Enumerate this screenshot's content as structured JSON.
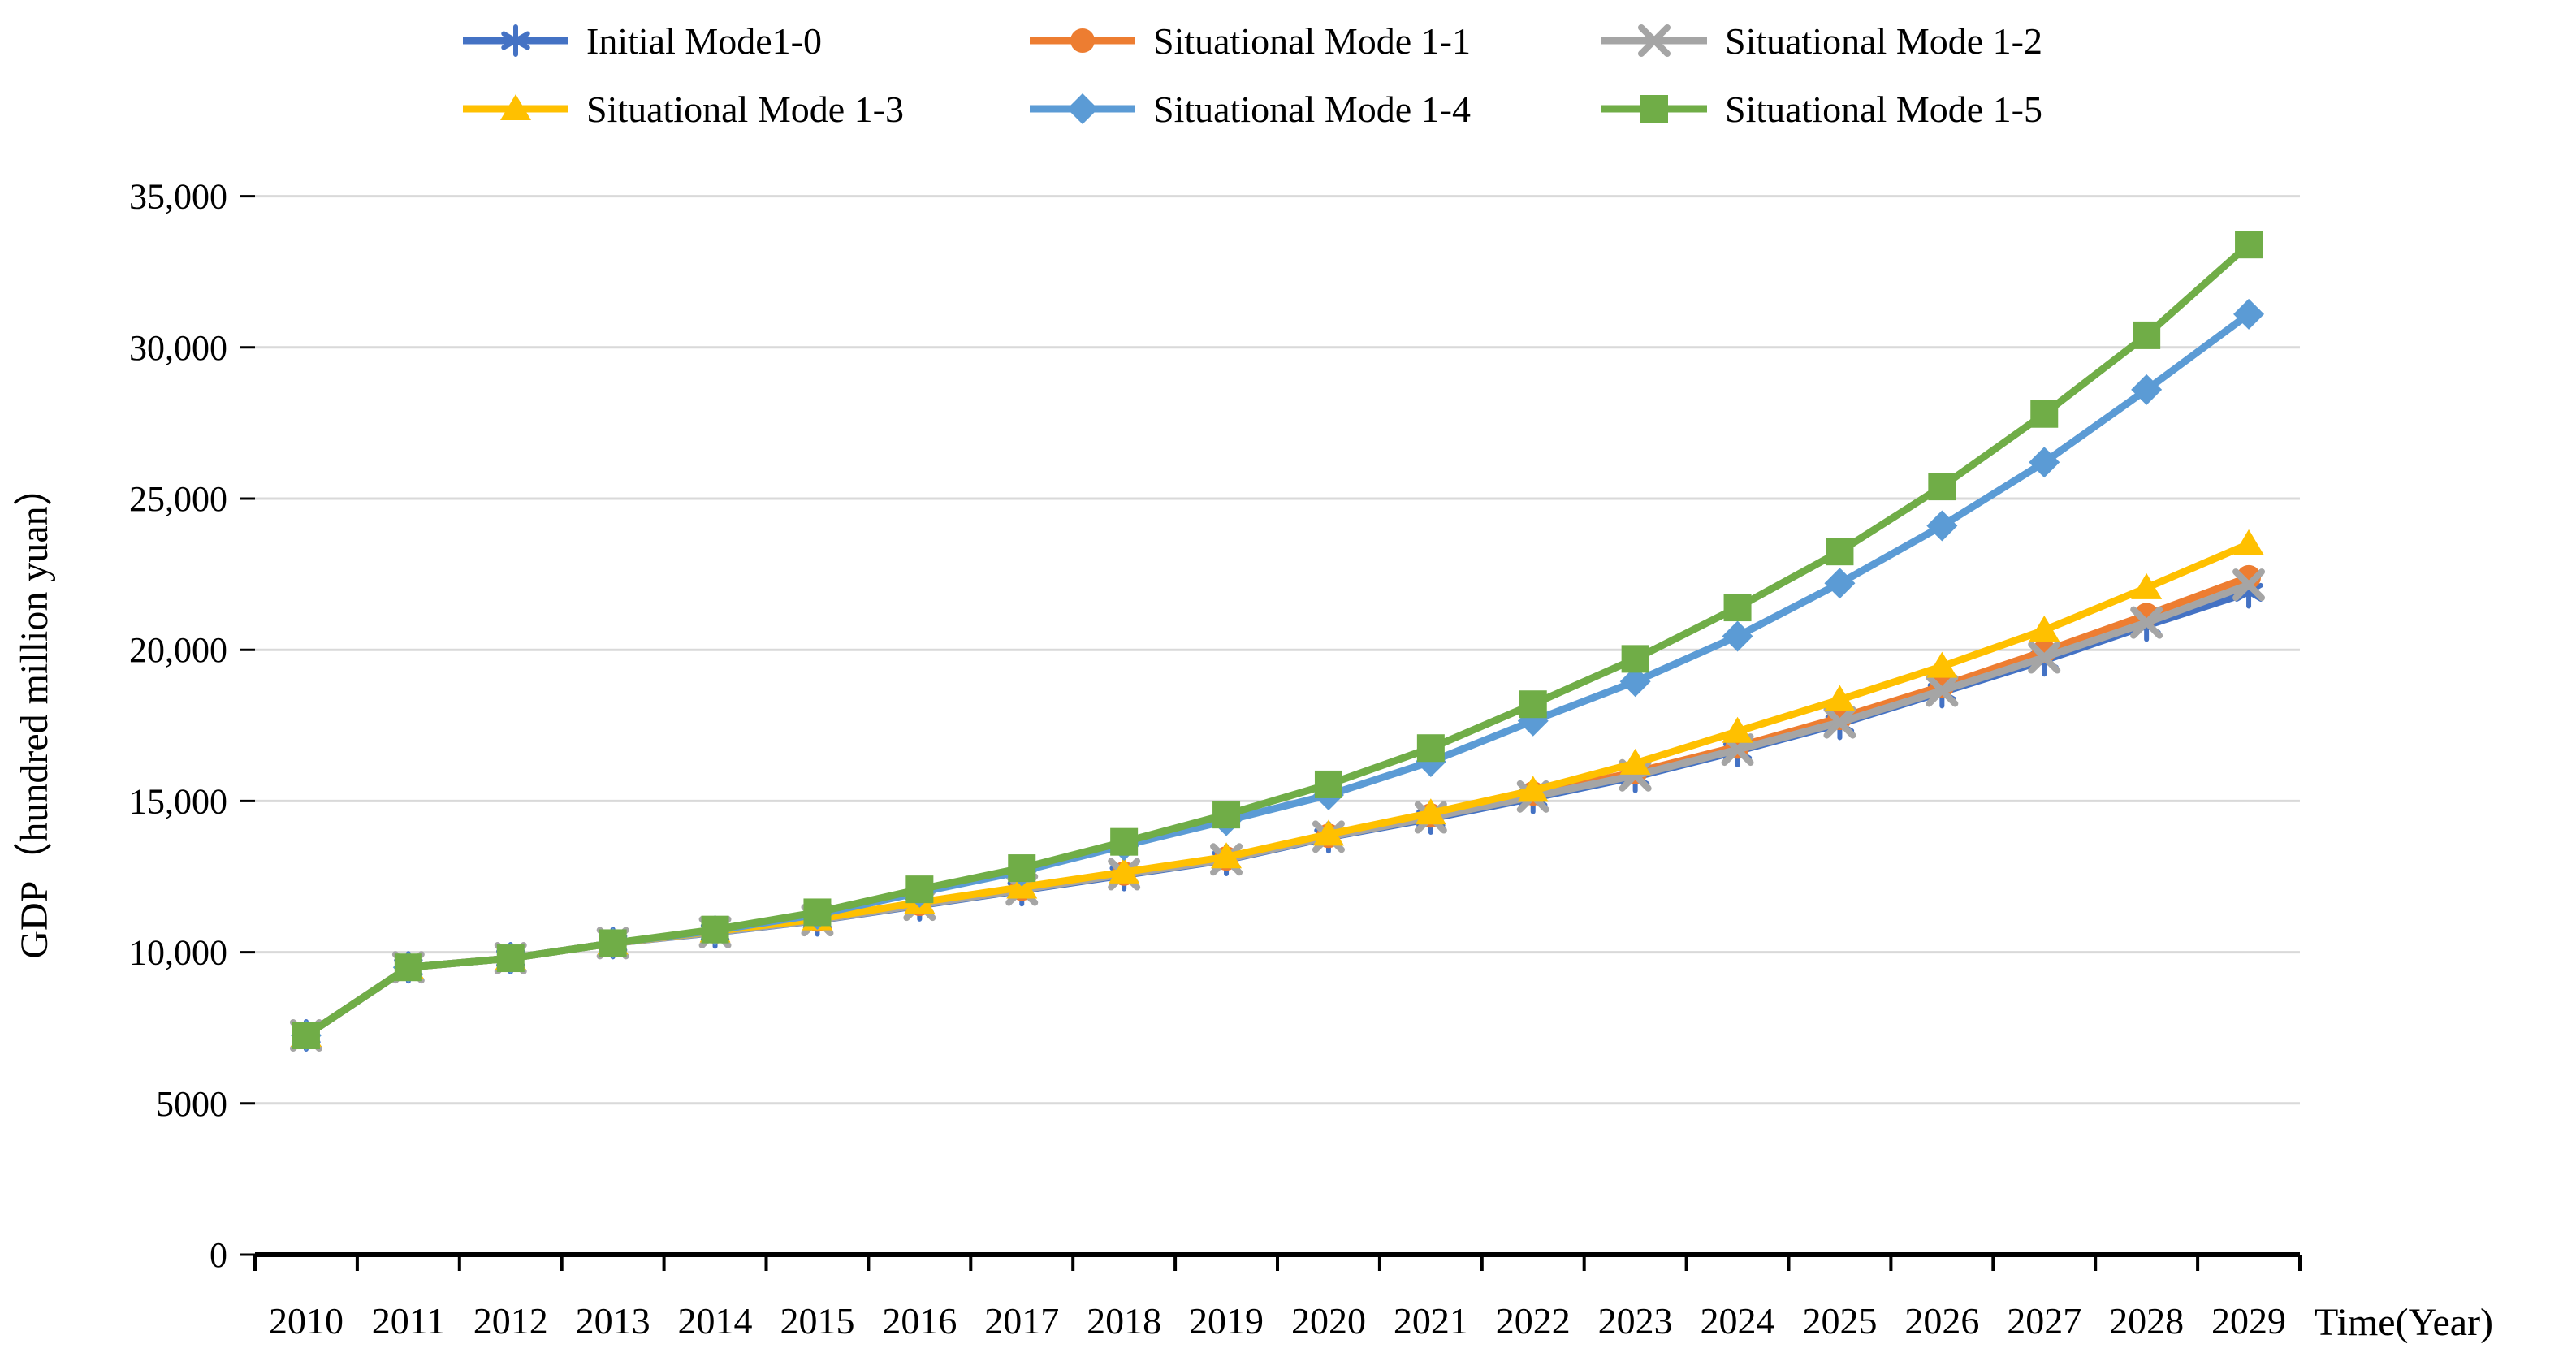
{
  "chart_data": {
    "type": "line",
    "title": "",
    "xlabel": "Time(Year)",
    "ylabel": "GDP（hundred million yuan）",
    "x": [
      2010,
      2011,
      2012,
      2013,
      2014,
      2015,
      2016,
      2017,
      2018,
      2019,
      2020,
      2021,
      2022,
      2023,
      2024,
      2025,
      2026,
      2027,
      2028,
      2029
    ],
    "x_tick_labels": [
      "2010",
      "2011",
      "2012",
      "2013",
      "2014",
      "2015",
      "2016",
      "2017",
      "2018",
      "2019",
      "2020",
      "2021",
      "2022",
      "2023",
      "2024",
      "2025",
      "2026",
      "2027",
      "2028",
      "2029"
    ],
    "y_ticks": [
      0,
      5000,
      10000,
      15000,
      20000,
      25000,
      30000,
      35000
    ],
    "y_tick_labels": [
      "0",
      "5000",
      "10,000",
      "15,000",
      "20,000",
      "25,000",
      "30,000",
      "35,000"
    ],
    "ylim": [
      0,
      35000
    ],
    "grid": "horizontal-only",
    "gridline_color": "#D9D9D9",
    "axis_color": "#000000",
    "legend_position": "top-two-rows",
    "series": [
      {
        "name": "Initial Mode1-0",
        "color": "#4472C4",
        "marker": "asterisk",
        "values": [
          7250,
          9500,
          9800,
          10300,
          10650,
          11050,
          11550,
          12050,
          12550,
          13050,
          13800,
          14420,
          15100,
          15800,
          16650,
          17550,
          18600,
          19650,
          20800,
          21900
        ]
      },
      {
        "name": "Situational Mode 1-1",
        "color": "#ED7D31",
        "marker": "circle",
        "values": [
          7250,
          9500,
          9800,
          10300,
          10680,
          11080,
          11600,
          12100,
          12600,
          13100,
          13850,
          14520,
          15250,
          15950,
          16800,
          17750,
          18800,
          19950,
          21150,
          22400
        ]
      },
      {
        "name": "Situational Mode 1-2",
        "color": "#A5A5A5",
        "marker": "x",
        "values": [
          7250,
          9500,
          9800,
          10300,
          10660,
          11060,
          11570,
          12070,
          12580,
          13070,
          13820,
          14460,
          15150,
          15850,
          16700,
          17600,
          18650,
          19750,
          20900,
          22150
        ]
      },
      {
        "name": "Situational Mode 1-3",
        "color": "#FFC000",
        "marker": "triangle",
        "values": [
          7250,
          9500,
          9800,
          10300,
          10700,
          11100,
          11650,
          12150,
          12650,
          13150,
          13900,
          14600,
          15350,
          16250,
          17300,
          18350,
          19450,
          20650,
          22050,
          23500
        ]
      },
      {
        "name": "Situational Mode 1-4",
        "color": "#5B9BD5",
        "marker": "diamond",
        "values": [
          7250,
          9500,
          9800,
          10300,
          10720,
          11250,
          11980,
          12680,
          13530,
          14350,
          15200,
          16300,
          17650,
          18950,
          20450,
          22200,
          24100,
          26200,
          28600,
          31100
        ]
      },
      {
        "name": "Situational Mode 1-5",
        "color": "#70AD47",
        "marker": "square",
        "values": [
          7250,
          9500,
          9800,
          10300,
          10750,
          11320,
          12080,
          12780,
          13650,
          14550,
          15550,
          16750,
          18200,
          19700,
          21400,
          23250,
          25400,
          27800,
          30400,
          33400
        ]
      }
    ]
  }
}
